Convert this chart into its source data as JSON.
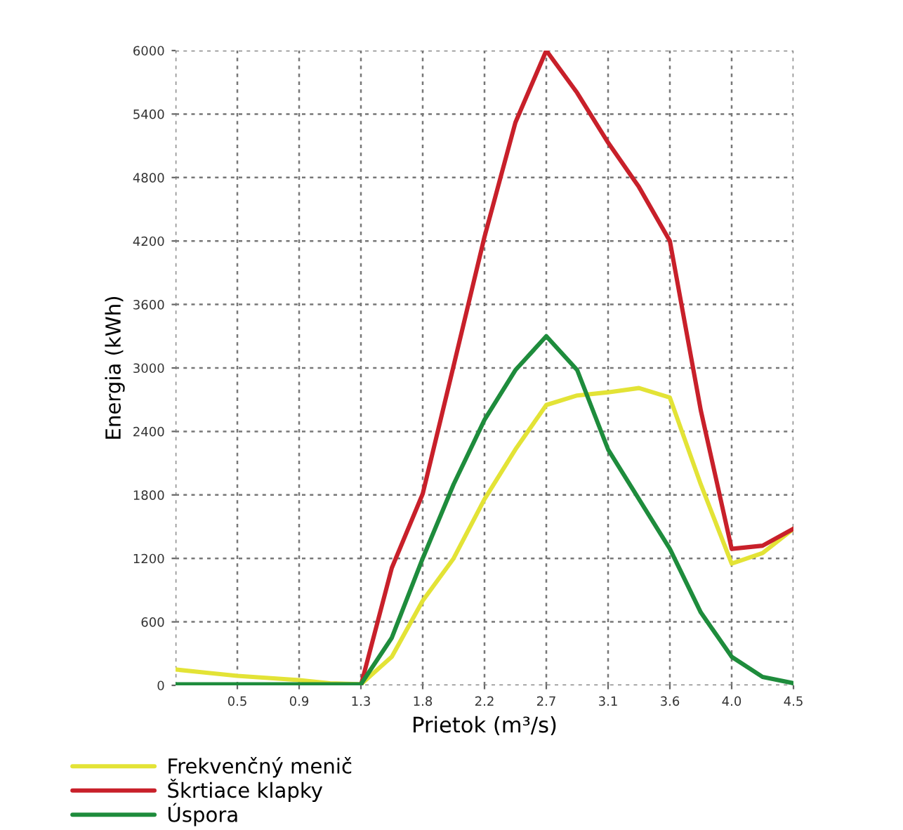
{
  "chart_data": {
    "type": "line",
    "xlabel": "Prietok (m³/s)",
    "ylabel": "Energia (kWh)",
    "categories": [
      null,
      null,
      "0.5",
      null,
      "0.9",
      null,
      "1.3",
      null,
      "1.8",
      null,
      "2.2",
      null,
      "2.7",
      null,
      "3.1",
      null,
      "3.6",
      null,
      "4.0",
      null,
      "4.5"
    ],
    "series": [
      {
        "name": "Frekvenčný menič",
        "color": "#e3e336",
        "values": [
          150,
          120,
          90,
          70,
          50,
          20,
          10,
          270,
          800,
          1200,
          1760,
          2230,
          2650,
          2740,
          2770,
          2810,
          2720,
          1900,
          1150,
          1250,
          1480
        ]
      },
      {
        "name": "Škrtiace klapky",
        "color": "#c8202a",
        "values": [
          null,
          null,
          null,
          null,
          null,
          null,
          0,
          1110,
          1810,
          3020,
          4240,
          5320,
          6000,
          5600,
          5130,
          4710,
          4200,
          2600,
          1290,
          1320,
          1480
        ]
      },
      {
        "name": "Úspora",
        "color": "#1e8c3c",
        "values": [
          10,
          10,
          10,
          10,
          10,
          10,
          10,
          450,
          1200,
          1900,
          2510,
          2980,
          3300,
          2980,
          2230,
          1760,
          1290,
          690,
          270,
          80,
          20
        ]
      }
    ],
    "ylim": [
      0,
      6000
    ],
    "yticks": [
      0,
      600,
      1200,
      1800,
      2400,
      3000,
      3600,
      4200,
      4800,
      5400,
      6000
    ],
    "grid": true,
    "legend": "bottom",
    "line_style": "solid"
  }
}
